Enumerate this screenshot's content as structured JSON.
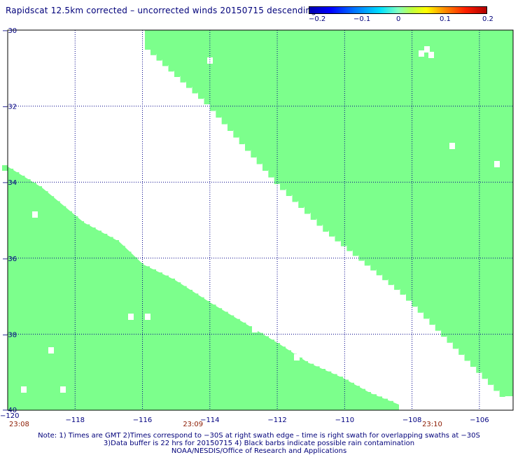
{
  "title": "Rapidscat 12.5km corrected – uncorrected winds 20150715 descending",
  "colorbar": {
    "labels": [
      "−0.2",
      "−0.1",
      "0",
      "0.1",
      "0.2"
    ],
    "colors": [
      "#0000b0",
      "#00e0ff",
      "#80ffc0",
      "#ffff00",
      "#ff9000",
      "#b00000"
    ]
  },
  "map": {
    "lon_range": [
      -120,
      -105
    ],
    "lat_range": [
      -40,
      -30
    ],
    "x_ticks": [
      "−118",
      "−116",
      "−114",
      "−112",
      "−110",
      "−108",
      "−106"
    ],
    "x_tick_values": [
      -118,
      -116,
      -114,
      -112,
      -110,
      -108,
      -106
    ],
    "x_corner_label": "−120",
    "y_ticks": [
      "−30",
      "−32",
      "−34",
      "−36",
      "−38",
      "−40"
    ],
    "y_tick_values": [
      -30,
      -32,
      -34,
      -36,
      -38,
      -40
    ],
    "swath_color": "#7cff8c",
    "times": [
      {
        "label": "23:08",
        "lon": -120
      },
      {
        "label": "23:09",
        "lon": -114.5
      },
      {
        "label": "23:10",
        "lon": -107.4
      }
    ]
  },
  "notes": {
    "line1": "Note: 1) Times are GMT 2)Times correspond to −30S at right swath edge – time is right swath for overlapping swaths at −30S",
    "line2": "3)Data buffer is 22 hrs for 20150715 4) Black barbs indicate possible rain contamination",
    "line3": "NOAA/NESDIS/Office of Research and Applications"
  }
}
